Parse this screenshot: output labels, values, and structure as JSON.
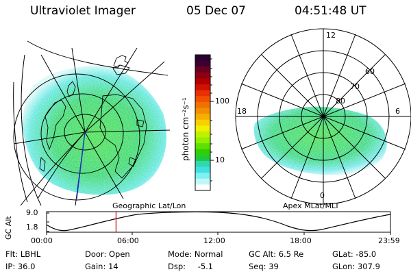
{
  "header": {
    "instrument": "Ultraviolet Imager",
    "date": "05 Dec 07",
    "time": "04:51:48 UT"
  },
  "colorbar": {
    "unit": "photon cm⁻²s⁻¹",
    "ticks": [
      {
        "label": "100",
        "value": 100
      },
      {
        "label": "10",
        "value": 10
      }
    ],
    "colors": [
      "#2a0030",
      "#3d0030",
      "#6a0020",
      "#8c0010",
      "#b00000",
      "#d01000",
      "#e83000",
      "#f05000",
      "#f07000",
      "#f09000",
      "#f4b000",
      "#f8d000",
      "#f0f000",
      "#c0f000",
      "#90f000",
      "#60e000",
      "#30d000",
      "#20c840",
      "#30d8b0",
      "#40e0e0",
      "#80f0f0",
      "#c0f8f8",
      "#ffffff"
    ]
  },
  "globe_panel": {
    "label": "Geographic Lat/Lon",
    "aurora_color": "#3ede5a"
  },
  "polar_panel": {
    "label": "Apex MLat/MLT",
    "mlt_labels": [
      {
        "text": "12",
        "pos": "top"
      },
      {
        "text": "18",
        "pos": "left"
      },
      {
        "text": "6",
        "pos": "right"
      },
      {
        "text": "0",
        "pos": "bottom"
      }
    ],
    "lat_labels": [
      "60",
      "70",
      "80"
    ]
  },
  "altitude_plot": {
    "ylabel": "GC Alt",
    "yticks": [
      "9.0",
      "1.8"
    ],
    "xticks": [
      "00:00",
      "06:00",
      "12:00",
      "18:00",
      "23:59"
    ],
    "current_time_marker": "04:51",
    "marker_color": "#cc0000"
  },
  "info": [
    [
      {
        "k": "Flt:",
        "v": "LBHL"
      },
      {
        "k": "Door:",
        "v": "Open"
      },
      {
        "k": "Mode:",
        "v": "Normal"
      },
      {
        "k": "GC Alt:",
        "v": "6.5 Re"
      },
      {
        "k": "GLat:",
        "v": "-85.0"
      }
    ],
    [
      {
        "k": "IP:",
        "v": "36.0"
      },
      {
        "k": "Gain:",
        "v": "14"
      },
      {
        "k": "Dsp:",
        "v": "-5.1"
      },
      {
        "k": "Seq:",
        "v": "39"
      },
      {
        "k": "GLon:",
        "v": "307.9"
      }
    ]
  ]
}
